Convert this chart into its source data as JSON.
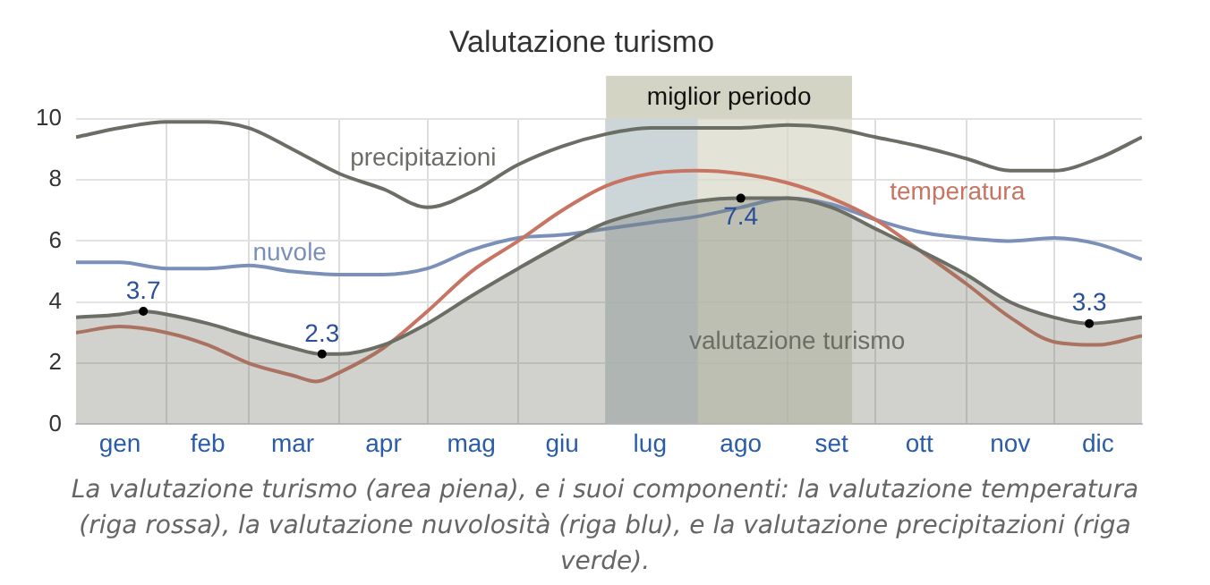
{
  "chart_data": {
    "type": "line",
    "title": "Valutazione turismo",
    "x": [
      "--01-01",
      "--01-16",
      "--02-01",
      "--02-15",
      "--03-01",
      "--03-16",
      "--04-01",
      "--04-16",
      "--05-01",
      "--05-16",
      "--06-01",
      "--06-16",
      "--07-01",
      "--07-16",
      "--08-01",
      "--08-16",
      "--09-01",
      "--09-16",
      "--10-01",
      "--10-16",
      "--11-01",
      "--11-16",
      "--12-01",
      "--12-16",
      "--12-31"
    ],
    "series": [
      {
        "name": "valutazione turismo",
        "type": "area",
        "color": "#6b6e64",
        "x": [
          "--01-01",
          "--01-16",
          "--01-24",
          "--02-01",
          "--02-15",
          "--03-01",
          "--03-16",
          "--03-26",
          "--04-01",
          "--04-16",
          "--05-01",
          "--05-16",
          "--06-01",
          "--06-16",
          "--07-01",
          "--07-16",
          "--08-01",
          "--08-16",
          "--09-01",
          "--09-16",
          "--10-01",
          "--10-16",
          "--11-01",
          "--11-16",
          "--12-01",
          "--12-13",
          "--12-31"
        ],
        "values": [
          3.5,
          3.6,
          3.7,
          3.6,
          3.3,
          2.9,
          2.5,
          2.3,
          2.3,
          2.6,
          3.3,
          4.2,
          5.1,
          5.9,
          6.6,
          7.0,
          7.3,
          7.4,
          7.4,
          7.1,
          6.4,
          5.7,
          4.9,
          4.0,
          3.5,
          3.3,
          3.5
        ],
        "value_labels": [
          null,
          null,
          "3.7",
          null,
          null,
          null,
          null,
          "2.3",
          null,
          null,
          null,
          null,
          null,
          null,
          null,
          null,
          null,
          "7.4",
          null,
          null,
          null,
          null,
          null,
          null,
          null,
          "3.3",
          null
        ]
      },
      {
        "name": "temperatura",
        "type": "line",
        "color": "#c87462",
        "x": [
          "--01-01",
          "--01-16",
          "--02-01",
          "--02-15",
          "--03-01",
          "--03-16",
          "--03-24",
          "--04-01",
          "--04-16",
          "--05-01",
          "--05-16",
          "--06-01",
          "--06-16",
          "--07-01",
          "--07-16",
          "--08-01",
          "--08-16",
          "--09-01",
          "--09-16",
          "--10-01",
          "--10-16",
          "--11-01",
          "--11-16",
          "--12-01",
          "--12-16",
          "--12-31"
        ],
        "values": [
          3.0,
          3.2,
          3.0,
          2.6,
          2.0,
          1.6,
          1.4,
          1.7,
          2.5,
          3.7,
          5.0,
          6.0,
          7.0,
          7.8,
          8.2,
          8.3,
          8.2,
          7.9,
          7.4,
          6.7,
          5.7,
          4.6,
          3.5,
          2.7,
          2.6,
          2.9
        ]
      },
      {
        "name": "nuvole",
        "type": "line",
        "color": "#7a90b8",
        "values": [
          5.3,
          5.3,
          5.1,
          5.1,
          5.2,
          5.0,
          4.9,
          4.9,
          5.1,
          5.7,
          6.1,
          6.2,
          6.4,
          6.6,
          6.8,
          7.1,
          7.4,
          7.2,
          6.7,
          6.3,
          6.1,
          6.0,
          6.1,
          5.9,
          5.4
        ]
      },
      {
        "name": "precipitazioni",
        "type": "line",
        "color": "#6b6e64",
        "values": [
          9.4,
          9.7,
          9.9,
          9.9,
          9.7,
          9.0,
          8.2,
          7.7,
          7.1,
          7.6,
          8.5,
          9.1,
          9.5,
          9.7,
          9.7,
          9.7,
          9.8,
          9.7,
          9.4,
          9.1,
          8.7,
          8.3,
          8.3,
          8.7,
          9.4
        ]
      }
    ],
    "xlim": [
      "--01-01",
      "--12-31"
    ],
    "xticks": [
      {
        "value": "--01-16",
        "label": "gen"
      },
      {
        "value": "--02-01",
        "label": null
      },
      {
        "value": "--02-15",
        "label": "feb"
      },
      {
        "value": "--03-01",
        "label": null
      },
      {
        "value": "--03-16",
        "label": "mar"
      },
      {
        "value": "--04-01",
        "label": null
      },
      {
        "value": "--04-16",
        "label": "apr"
      },
      {
        "value": "--05-01",
        "label": null
      },
      {
        "value": "--05-16",
        "label": "mag"
      },
      {
        "value": "--06-01",
        "label": null
      },
      {
        "value": "--06-16",
        "label": "giu"
      },
      {
        "value": "--07-01",
        "label": null
      },
      {
        "value": "--07-16",
        "label": "lug"
      },
      {
        "value": "--08-01",
        "label": null
      },
      {
        "value": "--08-16",
        "label": "ago"
      },
      {
        "value": "--09-01",
        "label": null
      },
      {
        "value": "--09-16",
        "label": "set"
      },
      {
        "value": "--10-01",
        "label": null
      },
      {
        "value": "--10-16",
        "label": "ott"
      },
      {
        "value": "--11-01",
        "label": null
      },
      {
        "value": "--11-16",
        "label": "nov"
      },
      {
        "value": "--12-01",
        "label": null
      },
      {
        "value": "--12-16",
        "label": "dic"
      }
    ],
    "ylim": [
      0,
      10
    ],
    "yticks": [
      0,
      2,
      4,
      6,
      8,
      10
    ],
    "grid": true,
    "legend": false,
    "bands": [
      {
        "axis": "x",
        "from": "--07-01",
        "to": "--09-23",
        "label": "miglior periodo",
        "color": "#d9d9cb"
      },
      {
        "axis": "x",
        "from": "--07-01",
        "to": "--08-01",
        "color": "#c4d0d8"
      }
    ],
    "annotations": [
      "La valutazione turismo (area piena), e i suoi componenti: la valutazione temperatura (riga rossa), la valutazione nuvolosità (riga blu), e la valutazione precipitazioni (riga verde)."
    ]
  }
}
